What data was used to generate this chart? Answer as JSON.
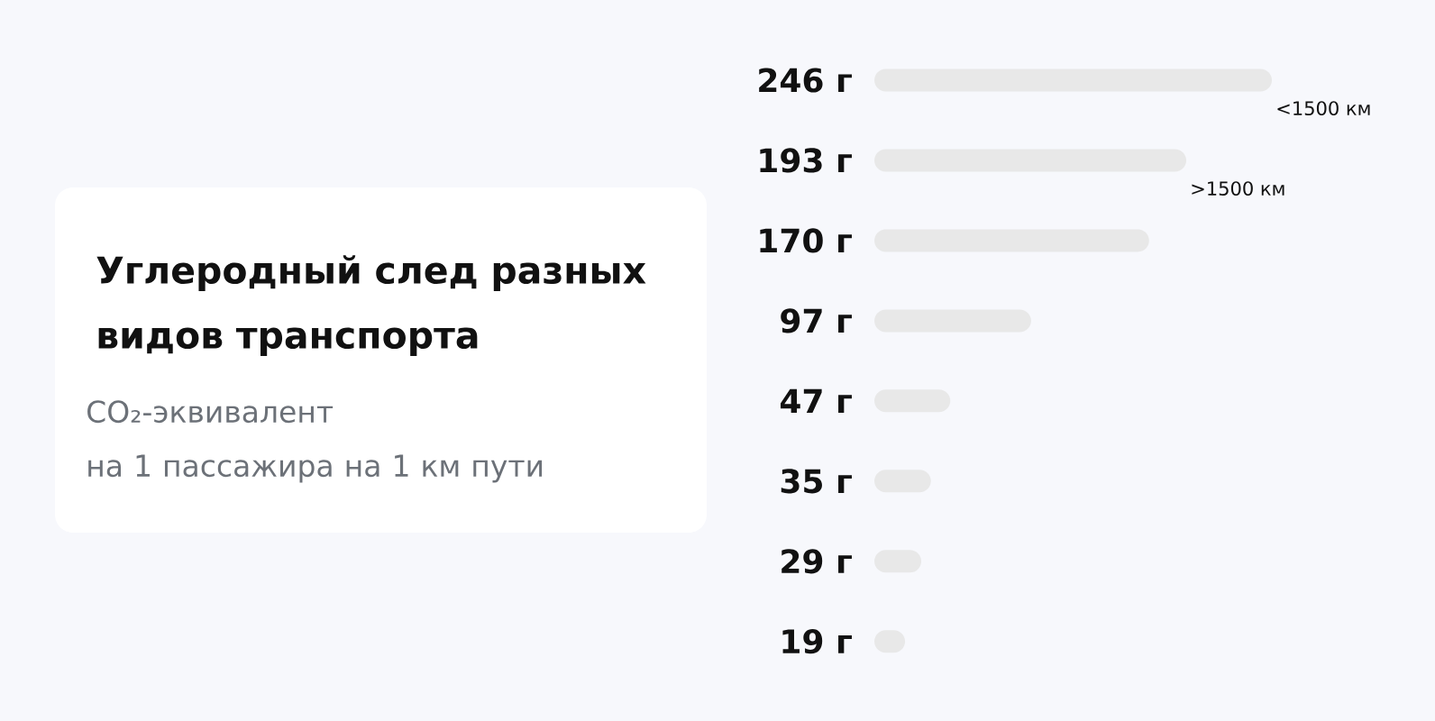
{
  "chart_data": {
    "type": "bar",
    "orientation": "horizontal",
    "title": "Углеродный след разных видов транспорта",
    "subtitle": "CO₂-эквивалент\nна 1 пассажира на 1 км пути",
    "categories": [
      "<1500 км",
      ">1500 км",
      null,
      null,
      null,
      null,
      null,
      null
    ],
    "values": [
      246,
      193,
      170,
      97,
      47,
      35,
      29,
      19
    ],
    "value_labels": [
      "246 г",
      "193 г",
      "170 г",
      "97 г",
      "47 г",
      "35 г",
      "29 г",
      "19 г"
    ],
    "color": "#e8e8e8"
  }
}
